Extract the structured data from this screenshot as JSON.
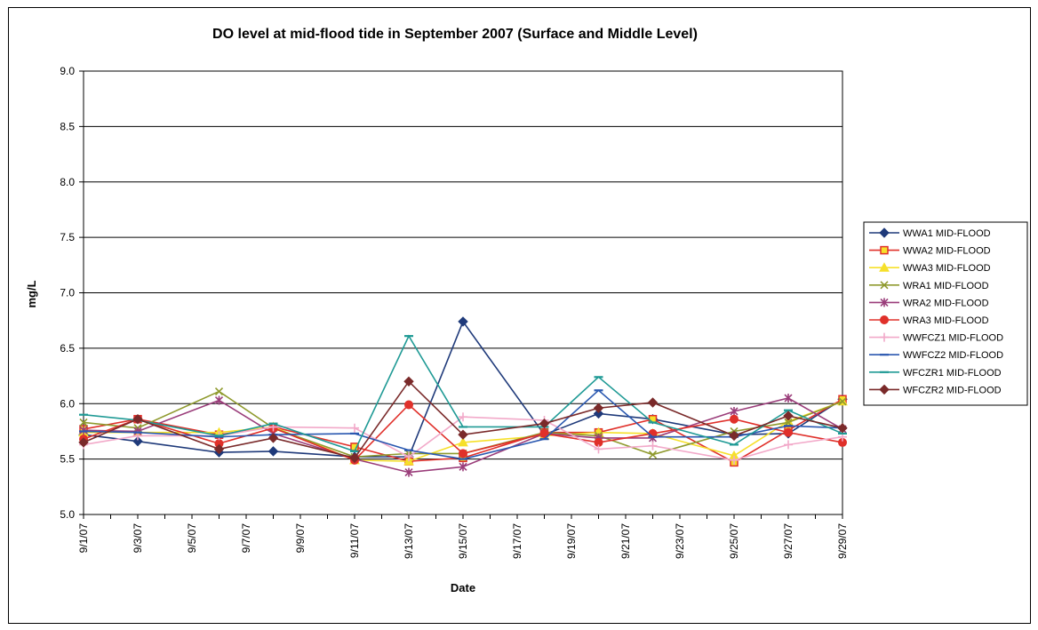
{
  "chart_data": {
    "type": "line",
    "title": "DO level at mid-flood tide in September 2007 (Surface and Middle Level)",
    "xlabel": "Date",
    "ylabel": "mg/L",
    "ylim": [
      5.0,
      9.0
    ],
    "xlim": [
      "9/1/07",
      "9/29/07"
    ],
    "yticks": [
      "5.0",
      "5.5",
      "6.0",
      "6.5",
      "7.0",
      "7.5",
      "8.0",
      "8.5",
      "9.0"
    ],
    "xticks": [
      "9/1/07",
      "9/3/07",
      "9/5/07",
      "9/7/07",
      "9/9/07",
      "9/11/07",
      "9/13/07",
      "9/15/07",
      "9/17/07",
      "9/19/07",
      "9/21/07",
      "9/23/07",
      "9/25/07",
      "9/27/07",
      "9/29/07"
    ],
    "grid": "horizontal",
    "legend_position": "right",
    "series": [
      {
        "name": "WWA1 MID-FLOOD",
        "color": "#1f3a7a",
        "marker": "diamond",
        "points": [
          [
            "9/1/07",
            5.72
          ],
          [
            "9/3/07",
            5.66
          ],
          [
            "9/6/07",
            5.56
          ],
          [
            "9/8/07",
            5.57
          ],
          [
            "9/11/07",
            5.52
          ],
          [
            "9/13/07",
            5.52
          ],
          [
            "9/15/07",
            6.74
          ],
          [
            "9/18/07",
            5.72
          ],
          [
            "9/20/07",
            5.91
          ],
          [
            "9/22/07",
            5.86
          ],
          [
            "9/25/07",
            5.72
          ],
          [
            "9/27/07",
            5.73
          ],
          [
            "9/29/07",
            6.04
          ]
        ]
      },
      {
        "name": "WWA2 MID-FLOOD",
        "color": "#e0302a",
        "marker": "square-open",
        "points": [
          [
            "9/1/07",
            5.77
          ],
          [
            "9/3/07",
            5.86
          ],
          [
            "9/6/07",
            5.72
          ],
          [
            "9/8/07",
            5.79
          ],
          [
            "9/11/07",
            5.61
          ],
          [
            "9/13/07",
            5.48
          ],
          [
            "9/15/07",
            5.51
          ],
          [
            "9/18/07",
            5.74
          ],
          [
            "9/20/07",
            5.74
          ],
          [
            "9/22/07",
            5.86
          ],
          [
            "9/25/07",
            5.47
          ],
          [
            "9/27/07",
            5.76
          ],
          [
            "9/29/07",
            6.04
          ]
        ]
      },
      {
        "name": "WWA3 MID-FLOOD",
        "color": "#f6e02a",
        "marker": "triangle",
        "points": [
          [
            "9/1/07",
            5.74
          ],
          [
            "9/3/07",
            5.74
          ],
          [
            "9/6/07",
            5.74
          ],
          [
            "9/8/07",
            5.79
          ],
          [
            "9/11/07",
            5.49
          ],
          [
            "9/13/07",
            5.48
          ],
          [
            "9/15/07",
            5.65
          ],
          [
            "9/18/07",
            5.71
          ],
          [
            "9/20/07",
            5.74
          ],
          [
            "9/22/07",
            5.73
          ],
          [
            "9/25/07",
            5.53
          ],
          [
            "9/27/07",
            5.84
          ],
          [
            "9/29/07",
            6.02
          ]
        ]
      },
      {
        "name": "WRA1 MID-FLOOD",
        "color": "#8f9a2e",
        "marker": "x",
        "points": [
          [
            "9/1/07",
            5.83
          ],
          [
            "9/3/07",
            5.78
          ],
          [
            "9/6/07",
            6.11
          ],
          [
            "9/8/07",
            5.78
          ],
          [
            "9/11/07",
            5.52
          ],
          [
            "9/13/07",
            5.55
          ],
          [
            "9/15/07",
            5.55
          ],
          [
            "9/18/07",
            5.74
          ],
          [
            "9/20/07",
            5.71
          ],
          [
            "9/22/07",
            5.54
          ],
          [
            "9/25/07",
            5.75
          ],
          [
            "9/27/07",
            5.83
          ],
          [
            "9/29/07",
            6.02
          ]
        ]
      },
      {
        "name": "WRA2 MID-FLOOD",
        "color": "#9a3d7a",
        "marker": "star",
        "points": [
          [
            "9/1/07",
            5.76
          ],
          [
            "9/3/07",
            5.75
          ],
          [
            "9/6/07",
            6.03
          ],
          [
            "9/8/07",
            5.73
          ],
          [
            "9/11/07",
            5.5
          ],
          [
            "9/13/07",
            5.38
          ],
          [
            "9/15/07",
            5.43
          ],
          [
            "9/18/07",
            5.73
          ],
          [
            "9/20/07",
            5.69
          ],
          [
            "9/22/07",
            5.69
          ],
          [
            "9/25/07",
            5.93
          ],
          [
            "9/27/07",
            6.05
          ],
          [
            "9/29/07",
            5.77
          ]
        ]
      },
      {
        "name": "WRA3 MID-FLOOD",
        "color": "#e0302a",
        "marker": "circle",
        "points": [
          [
            "9/1/07",
            5.68
          ],
          [
            "9/3/07",
            5.86
          ],
          [
            "9/6/07",
            5.64
          ],
          [
            "9/8/07",
            5.78
          ],
          [
            "9/11/07",
            5.49
          ],
          [
            "9/13/07",
            5.99
          ],
          [
            "9/15/07",
            5.55
          ],
          [
            "9/18/07",
            5.73
          ],
          [
            "9/20/07",
            5.65
          ],
          [
            "9/22/07",
            5.73
          ],
          [
            "9/25/07",
            5.86
          ],
          [
            "9/27/07",
            5.74
          ],
          [
            "9/29/07",
            5.65
          ]
        ]
      },
      {
        "name": "WWFCZ1 MID-FLOOD",
        "color": "#f2a9c9",
        "marker": "plus",
        "points": [
          [
            "9/1/07",
            5.63
          ],
          [
            "9/3/07",
            5.71
          ],
          [
            "9/6/07",
            5.71
          ],
          [
            "9/8/07",
            5.79
          ],
          [
            "9/11/07",
            5.78
          ],
          [
            "9/13/07",
            5.52
          ],
          [
            "9/15/07",
            5.88
          ],
          [
            "9/18/07",
            5.85
          ],
          [
            "9/20/07",
            5.59
          ],
          [
            "9/22/07",
            5.62
          ],
          [
            "9/25/07",
            5.49
          ],
          [
            "9/27/07",
            5.63
          ],
          [
            "9/29/07",
            5.7
          ]
        ]
      },
      {
        "name": "WWFCZ2 MID-FLOOD",
        "color": "#2a58b0",
        "marker": "dash",
        "points": [
          [
            "9/1/07",
            5.75
          ],
          [
            "9/3/07",
            5.74
          ],
          [
            "9/6/07",
            5.7
          ],
          [
            "9/8/07",
            5.72
          ],
          [
            "9/11/07",
            5.73
          ],
          [
            "9/13/07",
            5.58
          ],
          [
            "9/15/07",
            5.5
          ],
          [
            "9/18/07",
            5.68
          ],
          [
            "9/20/07",
            6.12
          ],
          [
            "9/22/07",
            5.7
          ],
          [
            "9/25/07",
            5.7
          ],
          [
            "9/27/07",
            5.8
          ],
          [
            "9/29/07",
            5.78
          ]
        ]
      },
      {
        "name": "WFCZR1 MID-FLOOD",
        "color": "#1f9a95",
        "marker": "dash",
        "points": [
          [
            "9/1/07",
            5.9
          ],
          [
            "9/3/07",
            5.85
          ],
          [
            "9/6/07",
            5.71
          ],
          [
            "9/8/07",
            5.82
          ],
          [
            "9/11/07",
            5.57
          ],
          [
            "9/13/07",
            6.61
          ],
          [
            "9/15/07",
            5.79
          ],
          [
            "9/18/07",
            5.79
          ],
          [
            "9/20/07",
            6.24
          ],
          [
            "9/22/07",
            5.83
          ],
          [
            "9/25/07",
            5.63
          ],
          [
            "9/27/07",
            5.94
          ],
          [
            "9/29/07",
            5.73
          ]
        ]
      },
      {
        "name": "WFCZR2 MID-FLOOD",
        "color": "#7a2a2a",
        "marker": "diamond",
        "points": [
          [
            "9/1/07",
            5.65
          ],
          [
            "9/3/07",
            5.86
          ],
          [
            "9/6/07",
            5.59
          ],
          [
            "9/8/07",
            5.69
          ],
          [
            "9/11/07",
            5.51
          ],
          [
            "9/13/07",
            6.2
          ],
          [
            "9/15/07",
            5.72
          ],
          [
            "9/18/07",
            5.82
          ],
          [
            "9/20/07",
            5.96
          ],
          [
            "9/22/07",
            6.01
          ],
          [
            "9/25/07",
            5.71
          ],
          [
            "9/27/07",
            5.89
          ],
          [
            "9/29/07",
            5.78
          ]
        ]
      }
    ]
  }
}
